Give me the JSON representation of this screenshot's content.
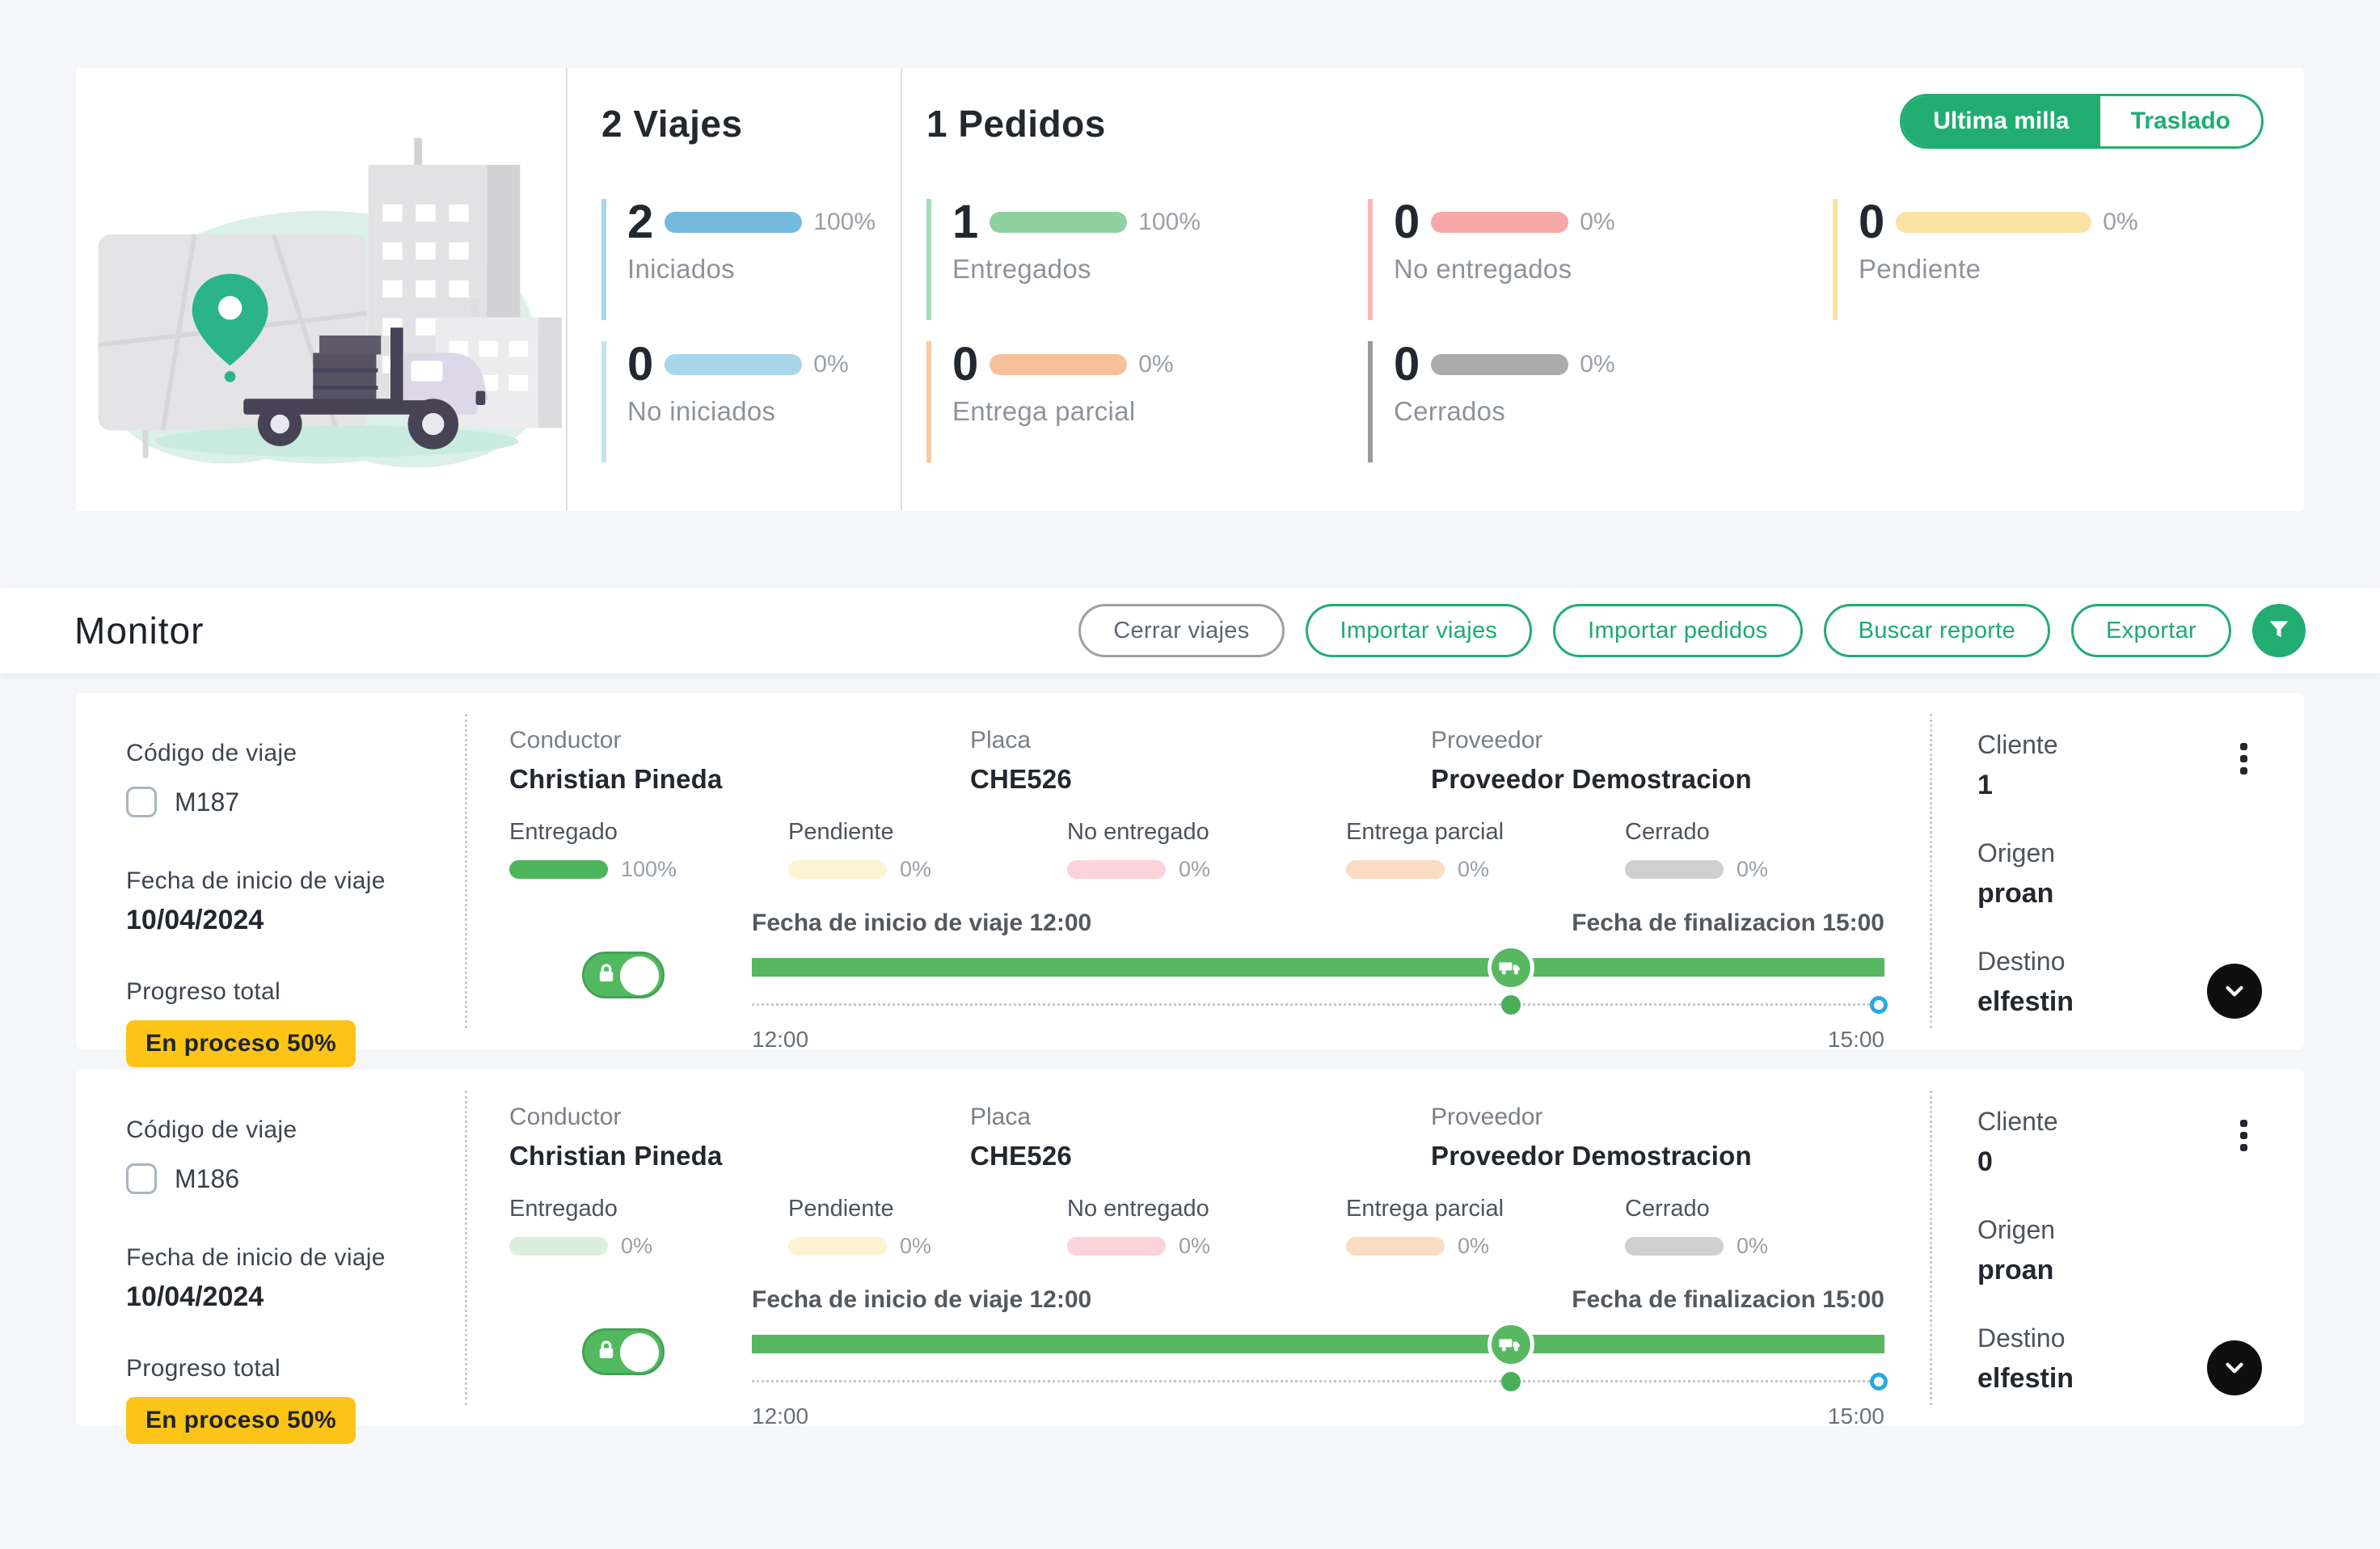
{
  "summary": {
    "viajes_title": "2 Viajes",
    "pedidos_title": "1 Pedidos",
    "toggle": {
      "selected": "Ultima milla",
      "other": "Traslado"
    },
    "stats": {
      "iniciados": {
        "value": "2",
        "pct": "100%",
        "label": "Iniciados",
        "tone": "blue",
        "color": "#74bade"
      },
      "no_iniciados": {
        "value": "0",
        "pct": "0%",
        "label": "No iniciados",
        "tone": "lightblue",
        "color": "#a9d6ea"
      },
      "entregados": {
        "value": "1",
        "pct": "100%",
        "label": "Entregados",
        "tone": "green",
        "color": "#8ed2a0"
      },
      "no_entregados": {
        "value": "0",
        "pct": "0%",
        "label": "No entregados",
        "tone": "pink",
        "color": "#f7a8a8"
      },
      "pendiente": {
        "value": "0",
        "pct": "0%",
        "label": "Pendiente",
        "tone": "yellow",
        "color": "#fae3a2"
      },
      "entrega_parcial": {
        "value": "0",
        "pct": "0%",
        "label": "Entrega parcial",
        "tone": "orange",
        "color": "#f7c29a"
      },
      "cerrados": {
        "value": "0",
        "pct": "0%",
        "label": "Cerrados",
        "tone": "gray",
        "color": "#ababab"
      }
    }
  },
  "monitor": {
    "title": "Monitor",
    "buttons": {
      "cerrar_viajes": "Cerrar viajes",
      "importar_viajes": "Importar viajes",
      "importar_pedidos": "Importar pedidos",
      "buscar_reporte": "Buscar reporte",
      "exportar": "Exportar"
    }
  },
  "labels": {
    "codigo_de_viaje": "Código de viaje",
    "fecha_inicio": "Fecha de inicio de viaje",
    "progreso_total": "Progreso total",
    "conductor": "Conductor",
    "placa": "Placa",
    "proveedor": "Proveedor",
    "cliente": "Cliente",
    "origen": "Origen",
    "destino": "Destino"
  },
  "trips": [
    {
      "code": "M187",
      "start_date": "10/04/2024",
      "progress_badge": "En proceso 50%",
      "conductor": "Christian Pineda",
      "placa": "CHE526",
      "proveedor": "Proveedor Demostracion",
      "stats": [
        {
          "label": "Entregado",
          "pct": "100%",
          "tone": "green-solid"
        },
        {
          "label": "Pendiente",
          "pct": "0%",
          "tone": "yellow-pale"
        },
        {
          "label": "No entregado",
          "pct": "0%",
          "tone": "pink-pale"
        },
        {
          "label": "Entrega parcial",
          "pct": "0%",
          "tone": "orange-pale"
        },
        {
          "label": "Cerrado",
          "pct": "0%",
          "tone": "gray-pale"
        }
      ],
      "timeline": {
        "start_label": "Fecha de inicio de viaje 12:00",
        "end_label": "Fecha de finalizacion 15:00",
        "start_time": "12:00",
        "end_time": "15:00",
        "truck_position_pct": 67
      },
      "cliente": "1",
      "origen": "proan",
      "destino": "elfestin"
    },
    {
      "code": "M186",
      "start_date": "10/04/2024",
      "progress_badge": "En proceso 50%",
      "conductor": "Christian Pineda",
      "placa": "CHE526",
      "proveedor": "Proveedor Demostracion",
      "stats": [
        {
          "label": "Entregado",
          "pct": "0%",
          "tone": "green-pale"
        },
        {
          "label": "Pendiente",
          "pct": "0%",
          "tone": "yellow-pale"
        },
        {
          "label": "No entregado",
          "pct": "0%",
          "tone": "pink-pale"
        },
        {
          "label": "Entrega parcial",
          "pct": "0%",
          "tone": "orange-pale"
        },
        {
          "label": "Cerrado",
          "pct": "0%",
          "tone": "gray-pale"
        }
      ],
      "timeline": {
        "start_label": "Fecha de inicio de viaje 12:00",
        "end_label": "Fecha de finalizacion 15:00",
        "start_time": "12:00",
        "end_time": "15:00",
        "truck_position_pct": 67
      },
      "cliente": "0",
      "origen": "proan",
      "destino": "elfestin"
    }
  ],
  "colors": {
    "brand_green": "#21ad72",
    "timeline_green": "#57b861",
    "solid_pill_green": "#4cb45a",
    "badge_yellow": "#fcc417",
    "handle_blue": "#29a9e1",
    "black_button": "#0f0f10",
    "page_background": "#f4f6f9"
  }
}
